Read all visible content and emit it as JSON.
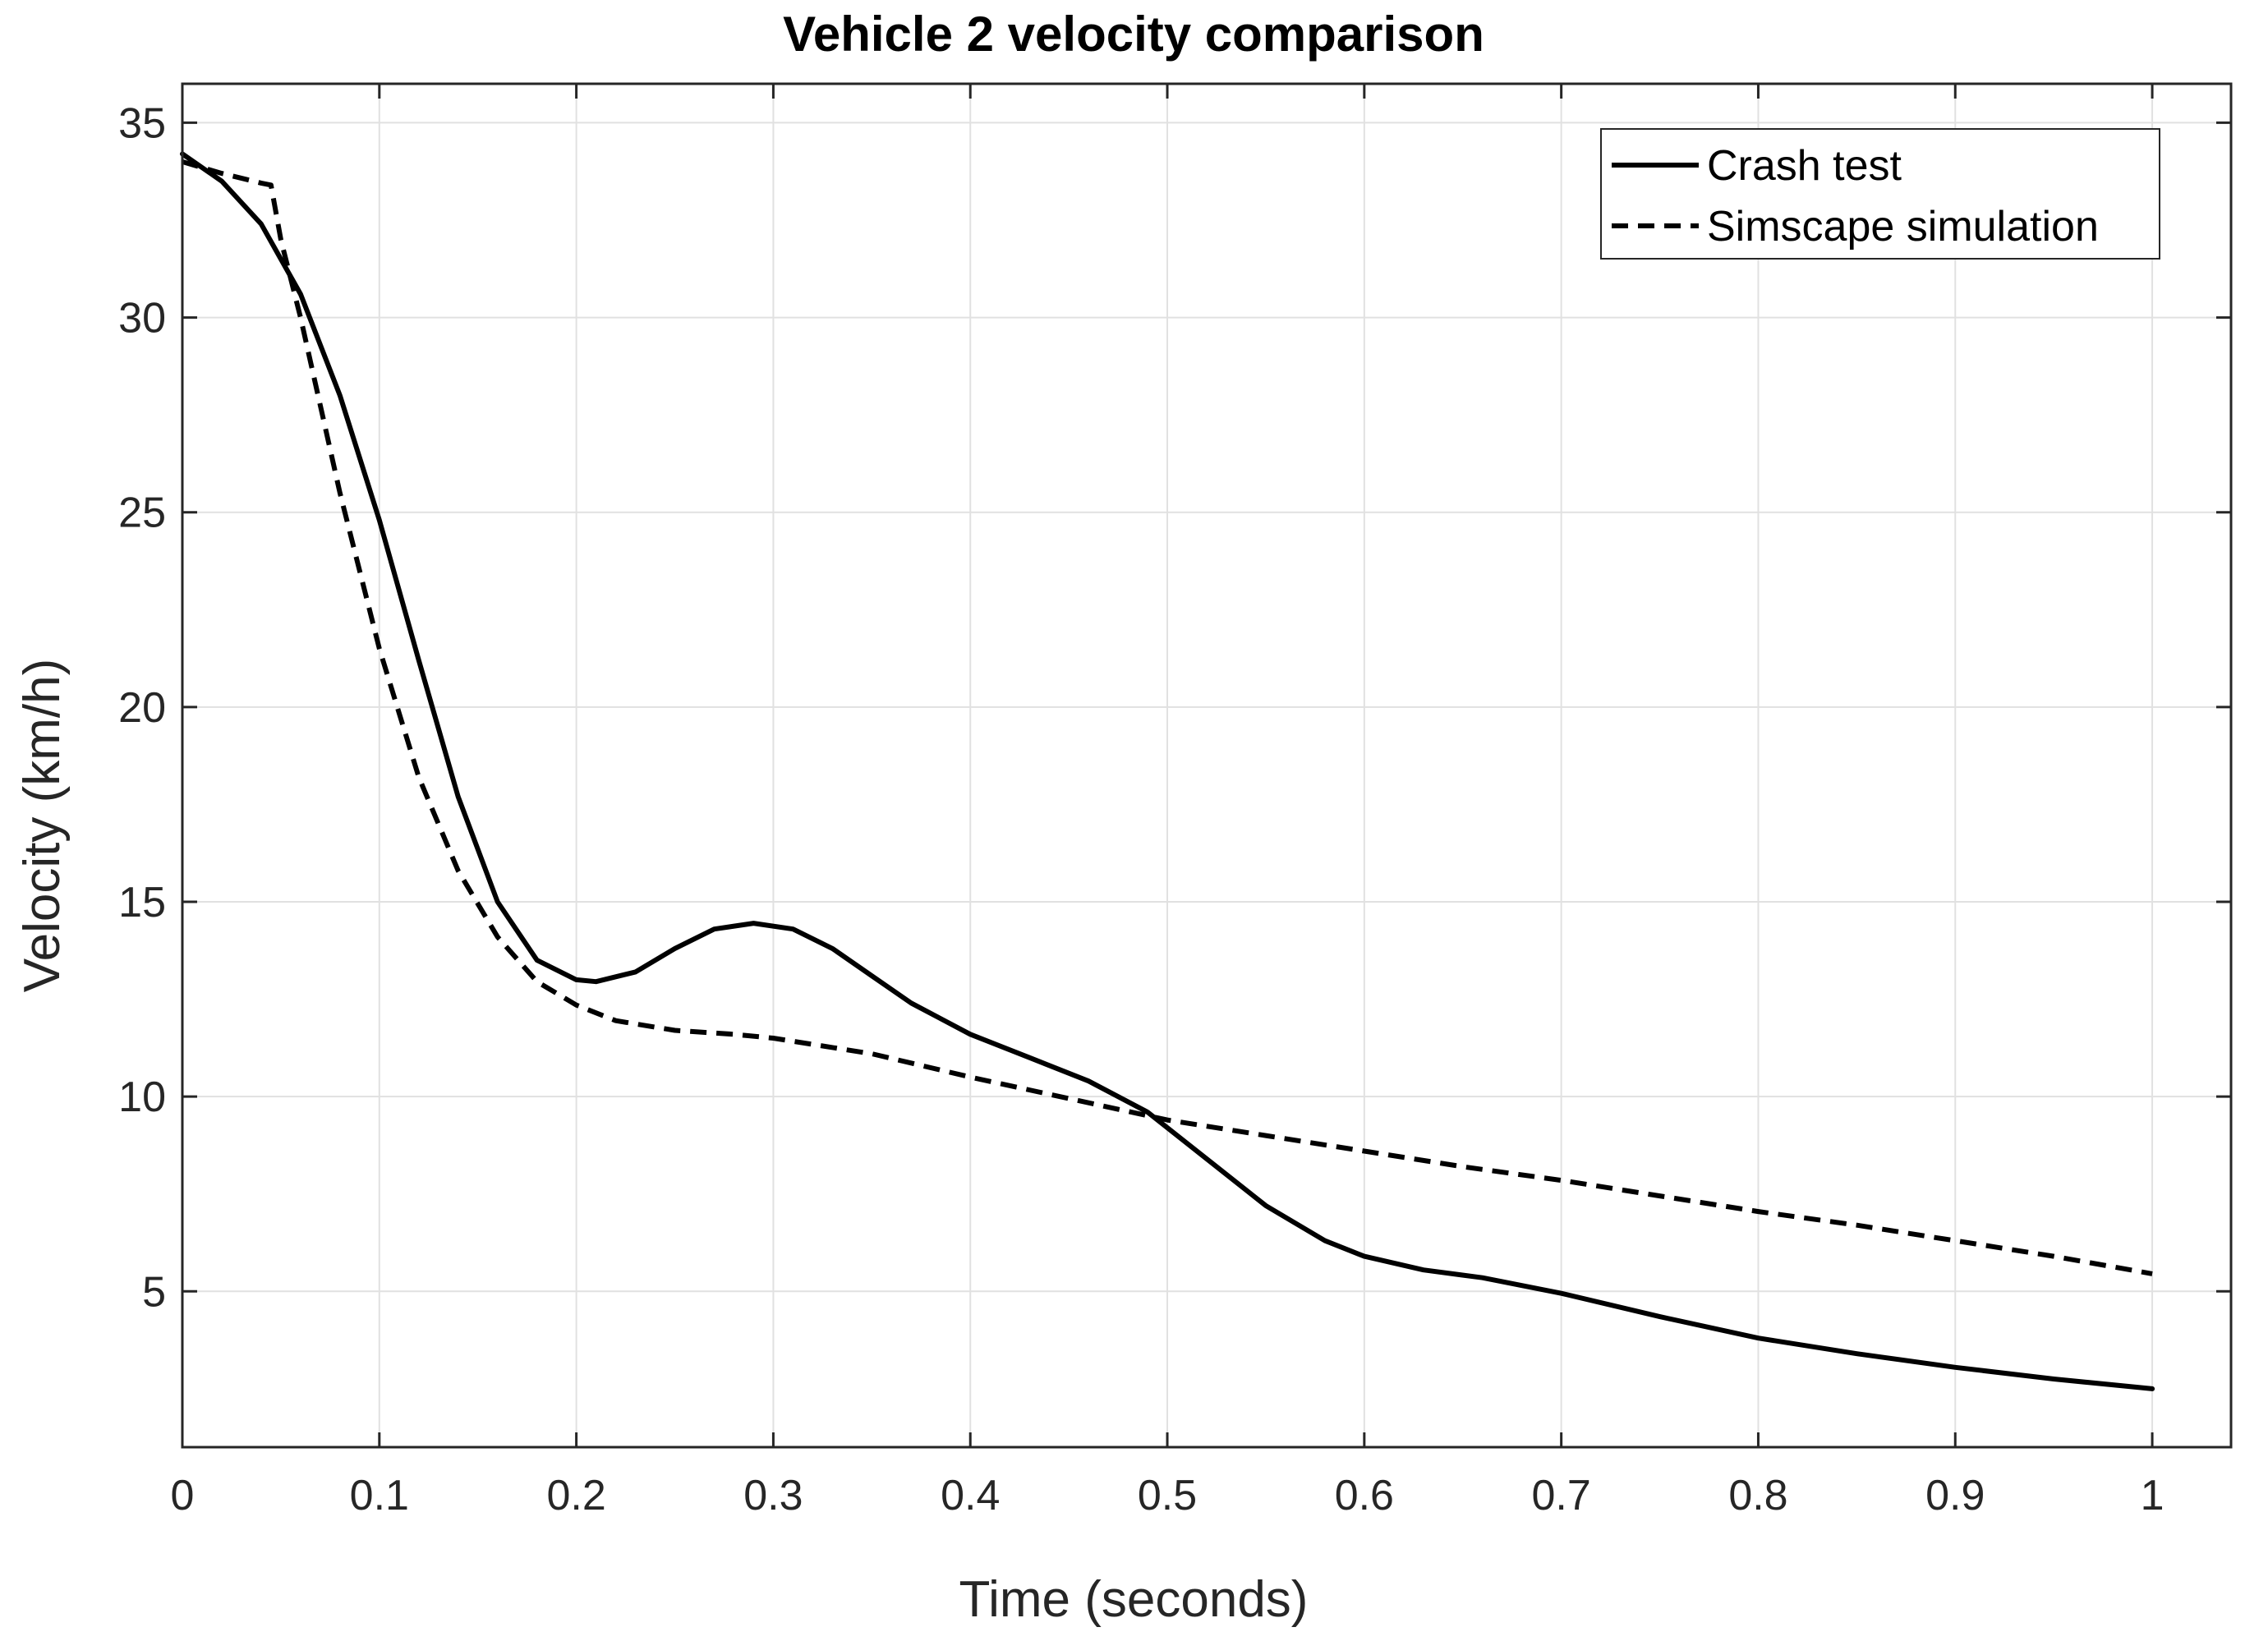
{
  "chart_data": {
    "type": "line",
    "title": "Vehicle 2 velocity comparison",
    "xlabel": "Time (seconds)",
    "ylabel": "Velocity (km/h)",
    "xlim": [
      0,
      1.04
    ],
    "ylim": [
      1,
      36
    ],
    "xticks": [
      0,
      0.1,
      0.2,
      0.3,
      0.4,
      0.5,
      0.6,
      0.7,
      0.8,
      0.9,
      1
    ],
    "xtick_labels": [
      "0",
      "0.1",
      "0.2",
      "0.3",
      "0.4",
      "0.5",
      "0.6",
      "0.7",
      "0.8",
      "0.9",
      "1"
    ],
    "yticks": [
      5,
      10,
      15,
      20,
      25,
      30,
      35
    ],
    "ytick_labels": [
      "5",
      "10",
      "15",
      "20",
      "25",
      "30",
      "35"
    ],
    "grid": true,
    "legend_position": "top-right",
    "series": [
      {
        "name": "Crash test",
        "style": "solid",
        "color": "#000000",
        "x": [
          0,
          0.02,
          0.04,
          0.06,
          0.08,
          0.1,
          0.12,
          0.14,
          0.16,
          0.18,
          0.2,
          0.21,
          0.23,
          0.25,
          0.27,
          0.29,
          0.31,
          0.33,
          0.35,
          0.37,
          0.4,
          0.43,
          0.46,
          0.49,
          0.52,
          0.55,
          0.58,
          0.6,
          0.63,
          0.66,
          0.7,
          0.75,
          0.8,
          0.85,
          0.9,
          0.95,
          1.0
        ],
        "values": [
          34.2,
          33.5,
          32.4,
          30.6,
          28.0,
          24.8,
          21.2,
          17.7,
          15.0,
          13.5,
          13.0,
          12.95,
          13.2,
          13.8,
          14.3,
          14.45,
          14.3,
          13.8,
          13.1,
          12.4,
          11.6,
          11.0,
          10.4,
          9.6,
          8.4,
          7.2,
          6.3,
          5.9,
          5.55,
          5.35,
          4.95,
          4.35,
          3.8,
          3.4,
          3.05,
          2.75,
          2.5
        ]
      },
      {
        "name": "Simscape simulation",
        "style": "dashed",
        "color": "#000000",
        "x": [
          0,
          0.02,
          0.04,
          0.045,
          0.05,
          0.06,
          0.08,
          0.1,
          0.12,
          0.14,
          0.16,
          0.18,
          0.2,
          0.22,
          0.25,
          0.28,
          0.3,
          0.35,
          0.4,
          0.45,
          0.5,
          0.55,
          0.6,
          0.65,
          0.7,
          0.75,
          0.8,
          0.85,
          0.9,
          0.95,
          1.0
        ],
        "values": [
          34.0,
          33.7,
          33.45,
          33.4,
          32.0,
          30.0,
          25.5,
          21.5,
          18.2,
          15.8,
          14.1,
          12.95,
          12.35,
          11.95,
          11.7,
          11.6,
          11.5,
          11.1,
          10.5,
          9.95,
          9.4,
          9.0,
          8.6,
          8.2,
          7.85,
          7.45,
          7.05,
          6.7,
          6.3,
          5.9,
          5.45
        ]
      }
    ]
  }
}
